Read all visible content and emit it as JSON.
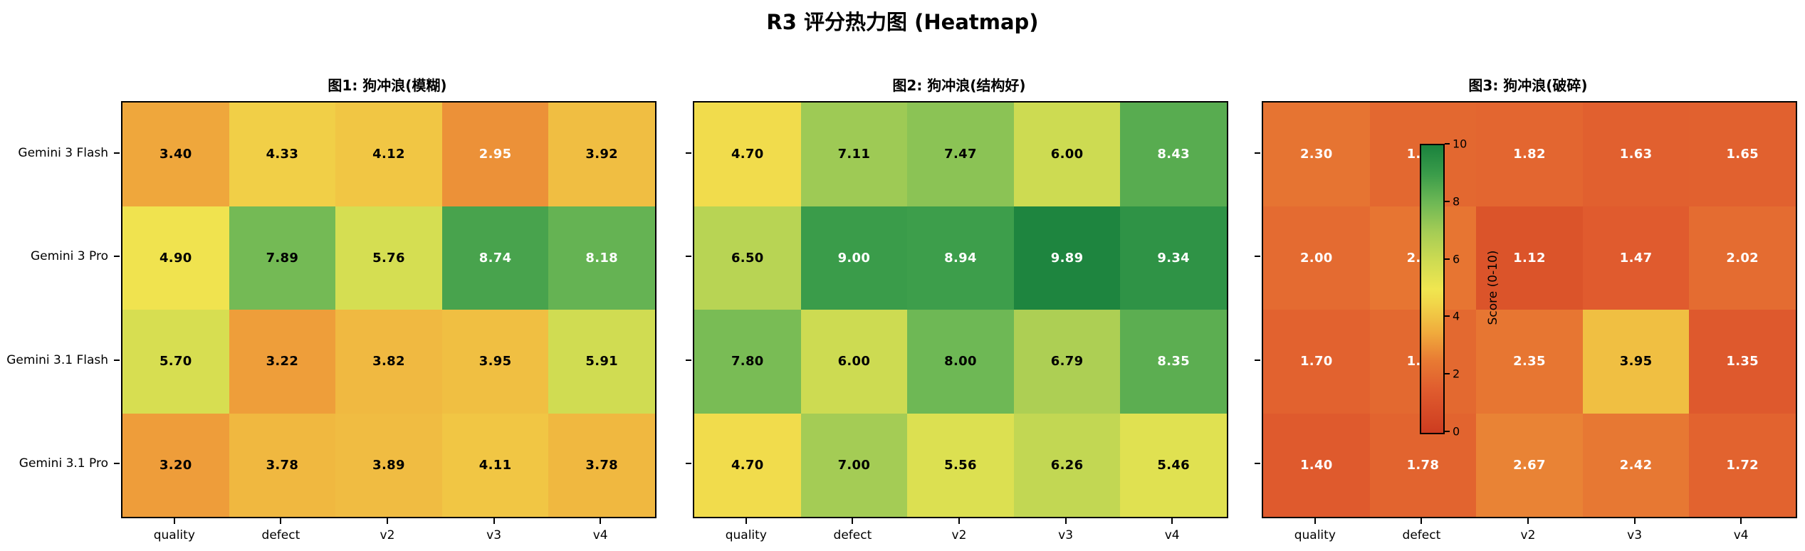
{
  "page": {
    "title": "R3 评分热力图 (Heatmap)"
  },
  "chart_data": {
    "type": "heatmap",
    "title": "R3 评分热力图 (Heatmap)",
    "rows": [
      "Gemini 3 Flash",
      "Gemini 3 Pro",
      "Gemini 3.1 Flash",
      "Gemini 3.1 Pro"
    ],
    "columns": [
      "quality",
      "defect",
      "v2",
      "v3",
      "v4"
    ],
    "vmin": 0,
    "vmax": 10,
    "colormap": {
      "name": "red-yellow-green",
      "low": "#cd3c20",
      "mid": "#f0e650",
      "high": "#1a823e"
    },
    "panels": [
      {
        "title": "图1: 狗冲浪(模糊)",
        "values": [
          [
            3.4,
            4.33,
            4.12,
            2.95,
            3.92
          ],
          [
            4.9,
            7.89,
            5.76,
            8.74,
            8.18
          ],
          [
            5.7,
            3.22,
            3.82,
            3.95,
            5.91
          ],
          [
            3.2,
            3.78,
            3.89,
            4.11,
            3.78
          ]
        ]
      },
      {
        "title": "图2: 狗冲浪(结构好)",
        "values": [
          [
            4.7,
            7.11,
            7.47,
            6.0,
            8.43
          ],
          [
            6.5,
            9.0,
            8.94,
            9.89,
            9.34
          ],
          [
            7.8,
            6.0,
            8.0,
            6.79,
            8.35
          ],
          [
            4.7,
            7.0,
            5.56,
            6.26,
            5.46
          ]
        ]
      },
      {
        "title": "图3: 狗冲浪(破碎)",
        "values": [
          [
            2.3,
            1.9,
            1.82,
            1.63,
            1.65
          ],
          [
            2.0,
            2.32,
            1.12,
            1.47,
            2.02
          ],
          [
            1.7,
            1.93,
            2.35,
            3.95,
            1.35
          ],
          [
            1.4,
            1.78,
            2.67,
            2.42,
            1.72
          ]
        ]
      }
    ],
    "colorbar": {
      "label": "Score (0-10)",
      "ticks": [
        0,
        2,
        4,
        6,
        8,
        10
      ]
    },
    "legend_position": "overlay-right-panel",
    "grid": false
  }
}
